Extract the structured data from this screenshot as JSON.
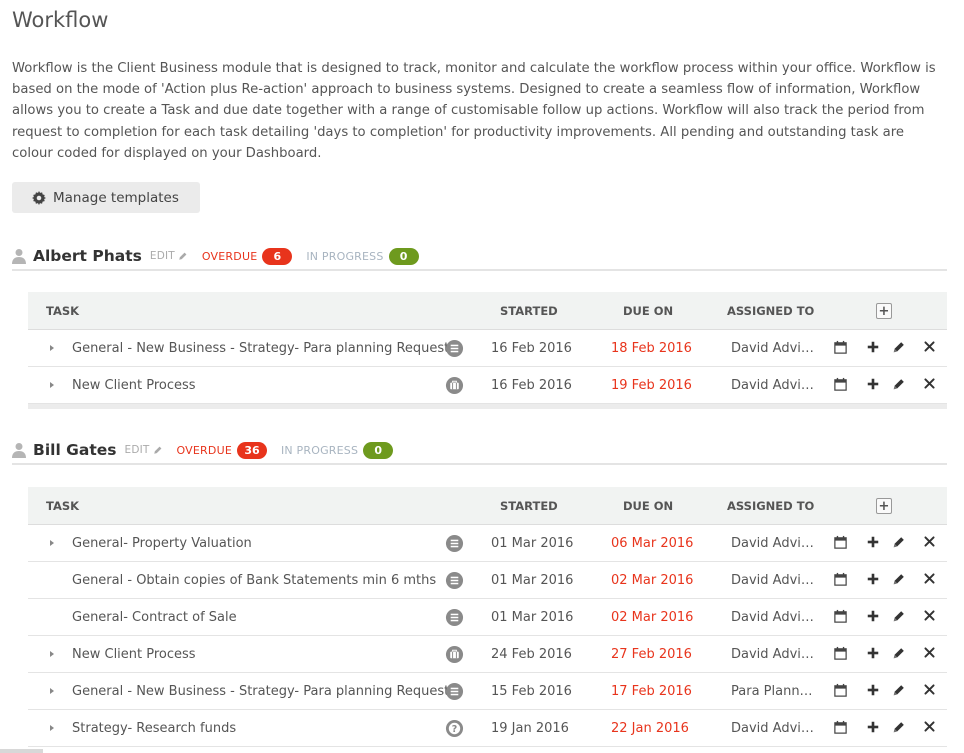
{
  "page": {
    "title": "Workflow",
    "intro": "Workflow is the Client Business module that is designed to track, monitor and calculate the workflow process within your office. Workflow is based on the mode of 'Action plus Re-action' approach to business systems. Designed to create a seamless flow of information, Workflow allows you to create a Task and due date together with a range of customisable follow up actions. Workflow will also track the period from request to completion for each task detailing 'days to completion' for productivity improvements. All pending and outstanding task are colour coded for displayed on your Dashboard.",
    "manage_templates_label": "Manage templates"
  },
  "labels": {
    "edit": "EDIT",
    "overdue": "OVERDUE",
    "in_progress": "IN PROGRESS"
  },
  "columns": {
    "task": "TASK",
    "started": "STARTED",
    "due_on": "DUE ON",
    "assigned_to": "ASSIGNED TO"
  },
  "clients": [
    {
      "name": "Albert Phats",
      "overdue_count": "6",
      "in_progress_count": "0",
      "tasks": [
        {
          "name": "General - New Business - Strategy- Para planning Request",
          "icon": "list-icon",
          "started": "16 Feb 2016",
          "due": "18 Feb 2016",
          "assigned": "David Advi…",
          "expandable": true
        },
        {
          "name": "New Client Process",
          "icon": "briefcase-icon",
          "started": "16 Feb 2016",
          "due": "19 Feb 2016",
          "assigned": "David Advi…",
          "expandable": true
        }
      ]
    },
    {
      "name": "Bill Gates",
      "overdue_count": "36",
      "in_progress_count": "0",
      "tasks": [
        {
          "name": "General- Property Valuation",
          "icon": "list-icon",
          "started": "01 Mar 2016",
          "due": "06 Mar 2016",
          "assigned": "David Advi…",
          "expandable": true
        },
        {
          "name": "General - Obtain copies of Bank Statements min 6 mths",
          "icon": "list-icon",
          "started": "01 Mar 2016",
          "due": "02 Mar 2016",
          "assigned": "David Advi…",
          "expandable": false
        },
        {
          "name": "General- Contract of Sale",
          "icon": "list-icon",
          "started": "01 Mar 2016",
          "due": "02 Mar 2016",
          "assigned": "David Advi…",
          "expandable": false
        },
        {
          "name": "New Client Process",
          "icon": "briefcase-icon",
          "started": "24 Feb 2016",
          "due": "27 Feb 2016",
          "assigned": "David Advi…",
          "expandable": true
        },
        {
          "name": "General - New Business - Strategy- Para planning Request",
          "icon": "list-icon",
          "started": "15 Feb 2016",
          "due": "17 Feb 2016",
          "assigned": "Para Plann…",
          "expandable": true
        },
        {
          "name": "Strategy- Research funds",
          "icon": "question-icon",
          "started": "19 Jan 2016",
          "due": "22 Jan 2016",
          "assigned": "David Advi…",
          "expandable": true
        }
      ]
    }
  ],
  "colors": {
    "overdue": "#e8341c",
    "in_progress": "#6e9a1e",
    "header_bg": "#f1f3f2"
  }
}
